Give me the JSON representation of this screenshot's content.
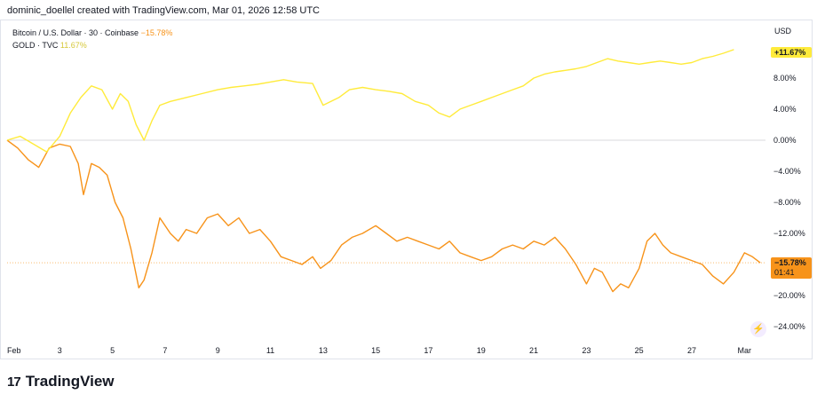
{
  "header": {
    "text": "dominic_doellel created with TradingView.com, Mar 01, 2026 12:58 UTC"
  },
  "legend": {
    "btc_symbol": "Bitcoin / U.S. Dollar · 30 · Coinbase",
    "btc_value": "−15.78%",
    "gold_symbol": "GOLD · TVC",
    "gold_value": "11.67%"
  },
  "axis_unit": "USD",
  "price_tags": {
    "gold": "+11.67%",
    "btc": "−15.78%",
    "btc_timer": "01:41"
  },
  "brand": {
    "name": "TradingView",
    "mark": "17"
  },
  "colors": {
    "btc": "#f7931a",
    "gold": "#ffeb3b",
    "grid": "#e0e3eb"
  },
  "chart_data": {
    "type": "line",
    "y_unit": "percent",
    "ylim": [
      -26,
      16
    ],
    "y_ticks": [
      8,
      4,
      0,
      -4,
      -8,
      -12,
      -20,
      -24
    ],
    "y_tick_labels": [
      "8.00%",
      "4.00%",
      "0.00%",
      "−4.00%",
      "−8.00%",
      "−12.00%",
      "−20.00%",
      "−24.00%"
    ],
    "x_ticks": [
      "Feb",
      "3",
      "5",
      "7",
      "9",
      "11",
      "13",
      "15",
      "17",
      "19",
      "21",
      "23",
      "25",
      "27",
      "Mar"
    ],
    "x_tick_days": [
      1,
      3,
      5,
      7,
      9,
      11,
      13,
      15,
      17,
      19,
      21,
      23,
      25,
      27,
      29
    ],
    "xlim_days": [
      1,
      29.8
    ],
    "grid": false,
    "series": [
      {
        "name": "Bitcoin / U.S. Dollar · 30 · Coinbase",
        "color": "#f7931a",
        "x": [
          1.0,
          1.4,
          1.8,
          2.2,
          2.6,
          3.0,
          3.4,
          3.7,
          3.9,
          4.2,
          4.5,
          4.8,
          5.1,
          5.4,
          5.7,
          6.0,
          6.2,
          6.5,
          6.8,
          7.2,
          7.5,
          7.8,
          8.2,
          8.6,
          9.0,
          9.4,
          9.8,
          10.2,
          10.6,
          11.0,
          11.4,
          11.8,
          12.2,
          12.6,
          12.9,
          13.3,
          13.7,
          14.1,
          14.5,
          15.0,
          15.4,
          15.8,
          16.2,
          16.6,
          17.0,
          17.4,
          17.8,
          18.2,
          18.6,
          19.0,
          19.4,
          19.8,
          20.2,
          20.6,
          21.0,
          21.4,
          21.8,
          22.2,
          22.6,
          23.0,
          23.3,
          23.6,
          24.0,
          24.3,
          24.6,
          25.0,
          25.3,
          25.6,
          25.9,
          26.2,
          26.6,
          27.0,
          27.4,
          27.8,
          28.2,
          28.6,
          29.0,
          29.3,
          29.6
        ],
        "y": [
          0.0,
          -1.0,
          -2.5,
          -3.5,
          -1.0,
          -0.5,
          -0.8,
          -3.0,
          -7.0,
          -3.0,
          -3.5,
          -4.5,
          -8.0,
          -10.0,
          -14.0,
          -19.0,
          -18.0,
          -14.5,
          -10.0,
          -12.0,
          -13.0,
          -11.5,
          -12.0,
          -10.0,
          -9.5,
          -11.0,
          -10.0,
          -12.0,
          -11.5,
          -13.0,
          -15.0,
          -15.5,
          -16.0,
          -15.0,
          -16.5,
          -15.5,
          -13.5,
          -12.5,
          -12.0,
          -11.0,
          -12.0,
          -13.0,
          -12.5,
          -13.0,
          -13.5,
          -14.0,
          -13.0,
          -14.5,
          -15.0,
          -15.5,
          -15.0,
          -14.0,
          -13.5,
          -14.0,
          -13.0,
          -13.5,
          -12.5,
          -14.0,
          -16.0,
          -18.5,
          -16.5,
          -17.0,
          -19.5,
          -18.5,
          -19.0,
          -16.5,
          -13.0,
          -12.0,
          -13.5,
          -14.5,
          -15.0,
          -15.5,
          -16.0,
          -17.5,
          -18.5,
          -17.0,
          -14.5,
          -15.0,
          -15.78
        ]
      },
      {
        "name": "GOLD · TVC",
        "color": "#ffeb3b",
        "x": [
          1.0,
          1.5,
          2.0,
          2.5,
          3.0,
          3.4,
          3.8,
          4.2,
          4.6,
          5.0,
          5.3,
          5.6,
          5.9,
          6.2,
          6.5,
          6.8,
          7.2,
          7.8,
          8.4,
          9.0,
          9.5,
          10.0,
          10.5,
          11.0,
          11.5,
          12.0,
          12.6,
          13.0,
          13.3,
          13.6,
          14.0,
          14.5,
          15.0,
          15.5,
          16.0,
          16.5,
          17.0,
          17.4,
          17.8,
          18.2,
          18.6,
          19.0,
          19.4,
          19.8,
          20.2,
          20.6,
          21.0,
          21.4,
          21.8,
          22.2,
          22.6,
          23.0,
          23.4,
          23.8,
          24.2,
          24.6,
          25.0,
          25.4,
          25.8,
          26.2,
          26.6,
          27.0,
          27.4,
          27.8,
          28.2,
          28.6
        ],
        "y": [
          0.0,
          0.5,
          -0.5,
          -1.5,
          0.5,
          3.5,
          5.5,
          7.0,
          6.5,
          4.0,
          6.0,
          5.0,
          2.0,
          0.0,
          2.5,
          4.5,
          5.0,
          5.5,
          6.0,
          6.5,
          6.8,
          7.0,
          7.2,
          7.5,
          7.8,
          7.5,
          7.3,
          4.5,
          5.0,
          5.5,
          6.5,
          6.8,
          6.5,
          6.3,
          6.0,
          5.0,
          4.5,
          3.5,
          3.0,
          4.0,
          4.5,
          5.0,
          5.5,
          6.0,
          6.5,
          7.0,
          8.0,
          8.5,
          8.8,
          9.0,
          9.2,
          9.5,
          10.0,
          10.5,
          10.2,
          10.0,
          9.8,
          10.0,
          10.2,
          10.0,
          9.8,
          10.0,
          10.5,
          10.8,
          11.2,
          11.67
        ]
      }
    ]
  }
}
